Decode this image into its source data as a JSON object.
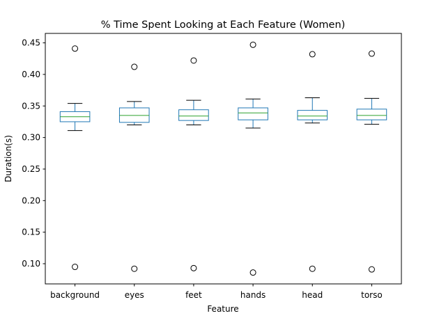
{
  "chart_data": {
    "type": "box",
    "title": "% Time Spent Looking at Each Feature (Women)",
    "xlabel": "Feature",
    "ylabel": "Duration(s)",
    "ylim": [
      0.068,
      0.465
    ],
    "yticks": [
      "0.10",
      "0.15",
      "0.20",
      "0.25",
      "0.30",
      "0.35",
      "0.40",
      "0.45"
    ],
    "grid": false,
    "colors": {
      "box": "#1f77b4",
      "median": "#2ca02c",
      "whisker": "#000000",
      "outlier": "#000000"
    },
    "categories": [
      "background",
      "eyes",
      "feet",
      "hands",
      "head",
      "torso"
    ],
    "boxes": [
      {
        "category": "background",
        "whislo": 0.311,
        "q1": 0.325,
        "med": 0.333,
        "q3": 0.341,
        "whishi": 0.354,
        "fliers": [
          0.095,
          0.441
        ]
      },
      {
        "category": "eyes",
        "whislo": 0.32,
        "q1": 0.324,
        "med": 0.335,
        "q3": 0.347,
        "whishi": 0.357,
        "fliers": [
          0.092,
          0.412
        ]
      },
      {
        "category": "feet",
        "whislo": 0.32,
        "q1": 0.327,
        "med": 0.334,
        "q3": 0.344,
        "whishi": 0.359,
        "fliers": [
          0.093,
          0.422
        ]
      },
      {
        "category": "hands",
        "whislo": 0.315,
        "q1": 0.328,
        "med": 0.339,
        "q3": 0.347,
        "whishi": 0.361,
        "fliers": [
          0.086,
          0.447
        ]
      },
      {
        "category": "head",
        "whislo": 0.323,
        "q1": 0.328,
        "med": 0.334,
        "q3": 0.343,
        "whishi": 0.363,
        "fliers": [
          0.092,
          0.432
        ]
      },
      {
        "category": "torso",
        "whislo": 0.321,
        "q1": 0.328,
        "med": 0.335,
        "q3": 0.345,
        "whishi": 0.362,
        "fliers": [
          0.091,
          0.433
        ]
      }
    ]
  }
}
